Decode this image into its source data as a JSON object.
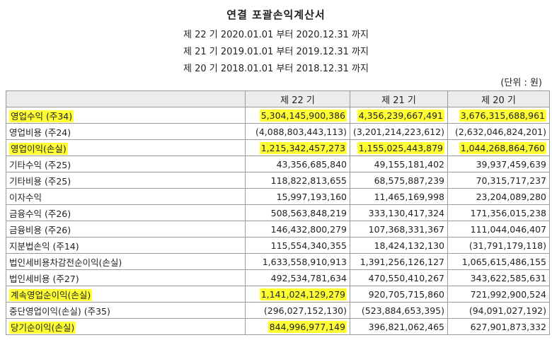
{
  "title": "연결 포괄손익계산서",
  "periods": [
    "제 22 기 2020.01.01 부터 2020.12.31 까지",
    "제 21 기 2019.01.01 부터 2019.12.31 까지",
    "제 20 기 2018.01.01 부터 2018.12.31 까지"
  ],
  "unit": "(단위 : 원)",
  "highlight_color": "#ffff33",
  "columns": [
    "제 22 기",
    "제 21 기",
    "제 20 기"
  ],
  "rows": [
    {
      "label": "영업수익 (주34)",
      "v": [
        "5,304,145,900,386",
        "4,356,239,667,491",
        "3,676,315,688,961"
      ]
    },
    {
      "label": "영업비용 (주24)",
      "v": [
        "(4,088,803,443,113)",
        "(3,201,214,223,612)",
        "(2,632,046,824,201)"
      ]
    },
    {
      "label": "영업이익(손실)",
      "v": [
        "1,215,342,457,273",
        "1,155,025,443,879",
        "1,044,268,864,760"
      ]
    },
    {
      "label": "기타수익 (주25)",
      "v": [
        "43,356,685,840",
        "49,155,181,402",
        "39,937,459,639"
      ]
    },
    {
      "label": "기타비용 (주25)",
      "v": [
        "118,822,813,655",
        "68,575,887,239",
        "70,315,717,237"
      ]
    },
    {
      "label": "이자수익",
      "v": [
        "15,997,193,160",
        "11,465,169,998",
        "23,204,089,280"
      ]
    },
    {
      "label": "금융수익 (주26)",
      "v": [
        "508,563,848,219",
        "333,130,417,324",
        "171,356,015,238"
      ]
    },
    {
      "label": "금융비용 (주26)",
      "v": [
        "146,432,800,279",
        "107,368,331,367",
        "111,044,046,407"
      ]
    },
    {
      "label": "지분법손익 (주14)",
      "v": [
        "115,554,340,355",
        "18,424,132,130",
        "(31,791,179,118)"
      ]
    },
    {
      "label": "법인세비용차감전순이익(손실)",
      "v": [
        "1,633,558,910,913",
        "1,391,256,126,127",
        "1,065,615,486,155"
      ]
    },
    {
      "label": "법인세비용 (주27)",
      "v": [
        "492,534,781,634",
        "470,550,410,267",
        "343,622,585,631"
      ]
    },
    {
      "label": "계속영업순이익(손실)",
      "v": [
        "1,141,024,129,279",
        "920,705,715,860",
        "721,992,900,524"
      ]
    },
    {
      "label": "중단영업이익(손실) (주35)",
      "v": [
        "(296,027,152,130)",
        "(523,884,653,395)",
        "(94,091,027,192)"
      ]
    },
    {
      "label": "당기순이익(손실)",
      "v": [
        "844,996,977,149",
        "396,821,062,465",
        "627,901,873,332"
      ]
    }
  ]
}
